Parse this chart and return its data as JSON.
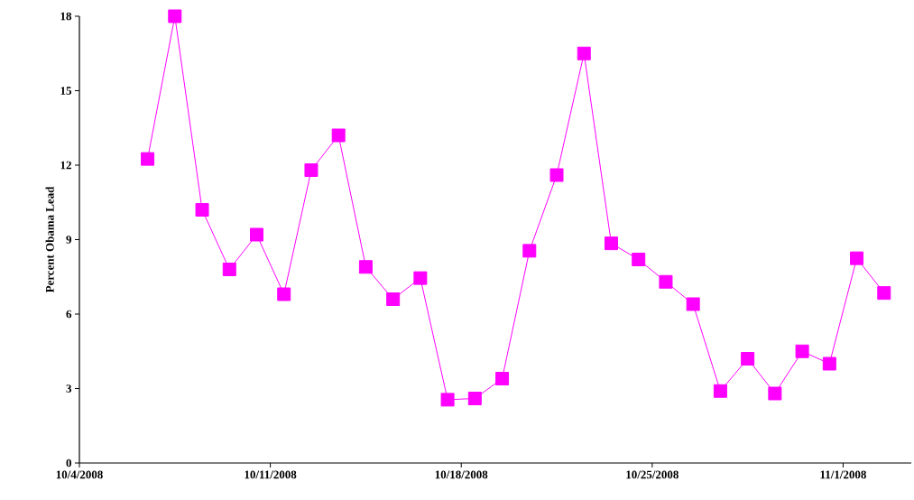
{
  "chart_data": {
    "type": "line",
    "ylabel": "Percent Obama Lead",
    "x": [
      "2008-10-06",
      "2008-10-07",
      "2008-10-08",
      "2008-10-09",
      "2008-10-10",
      "2008-10-11",
      "2008-10-12",
      "2008-10-13",
      "2008-10-14",
      "2008-10-15",
      "2008-10-16",
      "2008-10-17",
      "2008-10-18",
      "2008-10-19",
      "2008-10-20",
      "2008-10-21",
      "2008-10-22",
      "2008-10-23",
      "2008-10-24",
      "2008-10-25",
      "2008-10-26",
      "2008-10-27",
      "2008-10-28",
      "2008-10-29",
      "2008-10-30",
      "2008-10-31",
      "2008-11-01",
      "2008-11-02"
    ],
    "values": [
      12.25,
      18.0,
      10.2,
      7.8,
      9.2,
      6.8,
      11.8,
      13.2,
      7.9,
      6.6,
      7.45,
      2.55,
      2.6,
      3.4,
      8.55,
      11.6,
      16.5,
      8.85,
      8.2,
      7.3,
      6.4,
      2.9,
      4.2,
      2.8,
      4.5,
      4.0,
      8.25,
      6.85
    ],
    "color": "#ff00ff",
    "marker": "square",
    "line_style": "solid",
    "xlim": [
      "2008-10-03T12:00",
      "2008-11-03T00:00"
    ],
    "xticks": [
      {
        "value": "2008-10-03T12:00",
        "label": "10/4/2008"
      },
      {
        "value": "2008-10-10T12:00",
        "label": "10/11/2008"
      },
      {
        "value": "2008-10-17T12:00",
        "label": "10/18/2008"
      },
      {
        "value": "2008-10-24T12:00",
        "label": "10/25/2008"
      },
      {
        "value": "2008-10-31T12:00",
        "label": "11/1/2008"
      }
    ],
    "ylim": [
      0,
      18
    ],
    "yticks": [
      0,
      3,
      6,
      9,
      12,
      15,
      18
    ],
    "grid": false
  }
}
